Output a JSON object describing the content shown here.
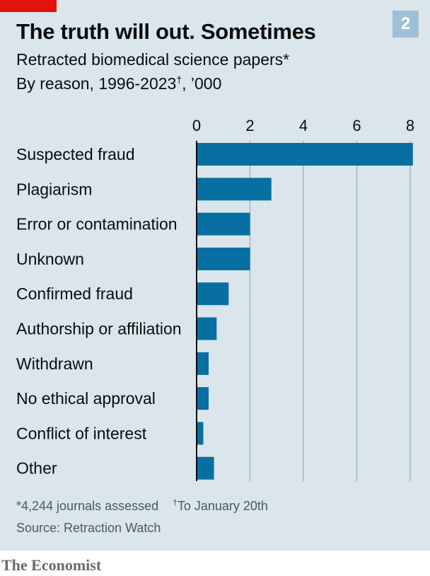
{
  "header": {
    "title": "The truth will out. Sometimes",
    "subtitle": "Retracted biomedical science papers*",
    "subtitle2_main": "By reason, 1996-2023",
    "subtitle2_mark": "†",
    "subtitle2_unit": ", ’000",
    "badge": "2"
  },
  "footer": {
    "note1": "*4,244 journals assessed",
    "note2_mark": "†",
    "note2": "To January 20th",
    "source": "Source: Retraction Watch",
    "brand": "The Economist"
  },
  "colors": {
    "background": "#dae5ec",
    "bar": "#076fa1",
    "grid": "#9aabb8",
    "brand_red": "#e3120b",
    "badge": "#9fbfd6"
  },
  "chart_data": {
    "type": "bar",
    "orientation": "horizontal",
    "categories": [
      "Suspected fraud",
      "Plagiarism",
      "Error or contamination",
      "Unknown",
      "Confirmed fraud",
      "Authorship or affiliation",
      "Withdrawn",
      "No ethical approval",
      "Conflict of interest",
      "Other"
    ],
    "values": [
      8.1,
      2.8,
      2.0,
      2.0,
      1.2,
      0.75,
      0.45,
      0.45,
      0.25,
      0.65
    ],
    "xlim": [
      0,
      8
    ],
    "xticks": [
      0,
      2,
      4,
      6,
      8
    ],
    "tick_labels": [
      "0",
      "2",
      "4",
      "6",
      "8"
    ],
    "grid": true
  }
}
